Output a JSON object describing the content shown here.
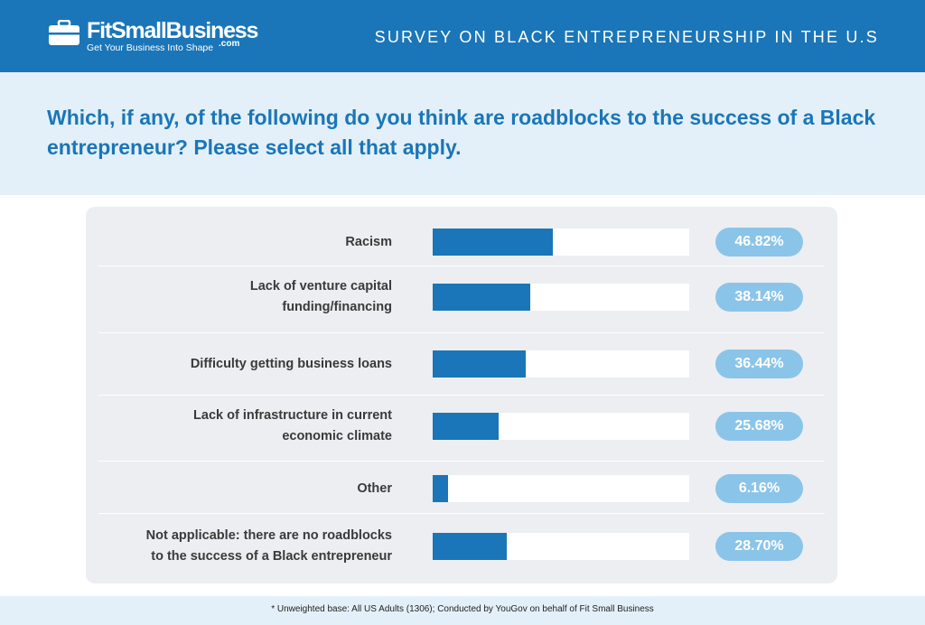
{
  "header": {
    "brand_name": "FitSmallBusiness",
    "brand_suffix": ".com",
    "tagline": "Get Your Business Into Shape",
    "title": "SURVEY ON BLACK ENTREPRENEURSHIP IN THE U.S"
  },
  "question": "Which, if any, of the following do you think are roadblocks to the success of a Black entrepreneur? Please select all that apply.",
  "chart_data": {
    "type": "bar",
    "orientation": "horizontal",
    "categories": [
      [
        "Racism"
      ],
      [
        "Lack of venture capital",
        "funding/financing"
      ],
      [
        "Difficulty getting business loans"
      ],
      [
        "Lack of infrastructure in current",
        "economic climate"
      ],
      [
        "Other"
      ],
      [
        "Not applicable: there are no roadblocks",
        "to the success of a Black entrepreneur"
      ]
    ],
    "values": [
      46.82,
      38.14,
      36.44,
      25.68,
      6.16,
      28.7
    ],
    "value_labels": [
      "46.82%",
      "38.14%",
      "36.44%",
      "25.68%",
      "6.16%",
      "28.70%"
    ],
    "xlim": [
      0,
      100
    ],
    "colors": {
      "bar": "#1a76b8",
      "track": "#ffffff",
      "pill": "#8bc4e9"
    }
  },
  "footer": {
    "note": "* Unweighted base: All US Adults (1306); Conducted by YouGov on behalf of Fit Small Business"
  }
}
